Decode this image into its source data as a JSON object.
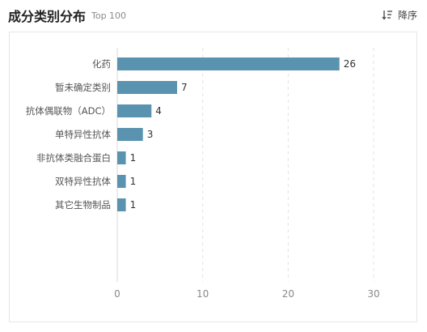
{
  "header": {
    "title": "成分类别分布",
    "subtitle": "Top 100",
    "sort_label": "降序",
    "sort_icon": "sort-descending-icon"
  },
  "colors": {
    "bar": "#5a93b0",
    "grid": "#e3e3e3",
    "axis_text": "#888888",
    "label_text": "#555555",
    "value_text": "#333333"
  },
  "chart_data": {
    "type": "bar",
    "orientation": "horizontal",
    "categories": [
      "化药",
      "暂未确定类别",
      "抗体偶联物（ADC）",
      "单特异性抗体",
      "非抗体类融合蛋白",
      "双特异性抗体",
      "其它生物制品"
    ],
    "values": [
      26,
      7,
      4,
      3,
      1,
      1,
      1
    ],
    "xlim": [
      0,
      30
    ],
    "xticks": [
      0,
      10,
      20,
      30
    ],
    "grid": "vertical-dashed",
    "data_labels": true
  }
}
